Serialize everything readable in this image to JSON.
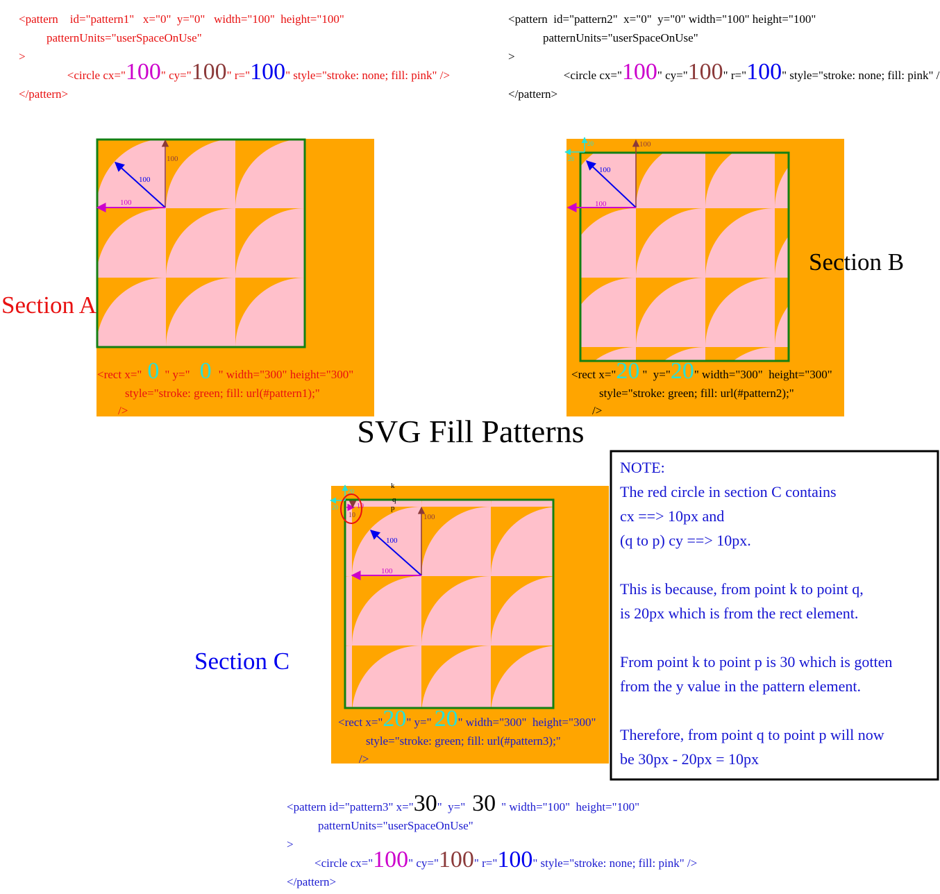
{
  "title": "SVG Fill Patterns",
  "colors": {
    "orange": "#ffa500",
    "pink": "#ffc0cb",
    "green": "#138013",
    "red": "#e81010",
    "blue": "#0000ee",
    "magenta": "#cc00cc",
    "brown": "#8b3a3a",
    "cyan": "#27e0d8",
    "code_blue": "#1a1ad0",
    "note_text": "#1414d2",
    "black": "#000000"
  },
  "code_a": {
    "l1": "<pattern    id=\"pattern1\"   x=\"0\"  y=\"0\"   width=\"100\"  height=\"100\"",
    "l2": "patternUnits=\"userSpaceOnUse\"",
    "l3": ">",
    "l4_pre": "<circle cx=\"",
    "cx": "100",
    "l4_mid1": "\" cy=\"",
    "cy": "100",
    "l4_mid2": "\" r=\"",
    "r": "100",
    "l4_post": "\" style=\"stroke: none; fill: pink\" />",
    "l5": "</pattern>"
  },
  "code_b": {
    "l1": "<pattern  id=\"pattern2\"  x=\"0\"  y=\"0\" width=\"100\" height=\"100\"",
    "l2": "patternUnits=\"userSpaceOnUse\"",
    "l3": ">",
    "l4_pre": "<circle cx=\"",
    "cx": "100",
    "l4_mid1": "\" cy=\"",
    "cy": "100",
    "l4_mid2": "\" r=\"",
    "r": "100",
    "l4_post": "\" style=\"stroke: none; fill: pink\" />",
    "l5": "</pattern>"
  },
  "code_c": {
    "l1_pre": "<pattern id=\"pattern3\" x=\"",
    "x": "30",
    "l1_mid": "\"  y=\"",
    "y": "30",
    "l1_post": "\" width=\"100\"  height=\"100\"",
    "l2": "patternUnits=\"userSpaceOnUse\"",
    "l3": ">",
    "l4_pre": "<circle cx=\"",
    "cx": "100",
    "l4_mid1": "\" cy=\"",
    "cy": "100",
    "l4_mid2": "\" r=\"",
    "r": "100",
    "l4_post": "\" style=\"stroke: none; fill: pink\" />",
    "l5": "</pattern>"
  },
  "section_a": {
    "label": "Section A",
    "arrow_up": "100",
    "arrow_diag": "100",
    "arrow_left": "100",
    "rect_pre": "<rect x=\"",
    "x": "0",
    "rect_mid": "\" y=\"",
    "y": "0",
    "rect_post": "\" width=\"300\" height=\"300\"",
    "rect_l2": "style=\"stroke: green; fill: url(#pattern1);\"",
    "rect_l3": "/>"
  },
  "section_b": {
    "label": "Section B",
    "arrow_up": "100",
    "arrow_diag": "100",
    "arrow_left": "100",
    "offset_x": "20",
    "offset_y": "20",
    "rect_pre": "<rect x=\"",
    "x": "20",
    "rect_mid": "\"  y=\"",
    "y": "20",
    "rect_post": "\" width=\"300\"  height=\"300\"",
    "rect_l2": "style=\"stroke: green; fill: url(#pattern2);\"",
    "rect_l3": "/>"
  },
  "section_c": {
    "label": "Section C",
    "arrow_up": "100",
    "arrow_diag": "100",
    "arrow_left": "100",
    "offset_x": "20",
    "offset_y": "20",
    "small_cx": "10",
    "small_cy": "10",
    "point_k": "k",
    "point_q": "q",
    "point_p": "p",
    "rect_pre": "<rect x=\"",
    "x": "20",
    "rect_mid": "\" y=\"",
    "y": "20",
    "rect_post": "\" width=\"300\"  height=\"300\"",
    "rect_l2": "style=\"stroke: green; fill: url(#pattern3);\"",
    "rect_l3": "/>"
  },
  "note": {
    "lines": [
      "NOTE:",
      "The red circle in section C contains",
      "cx ==> 10px and",
      "(q to p) cy ==> 10px.",
      "",
      "This is because, from point k to point q,",
      "is 20px which is from the rect element.",
      "",
      "From point k to point p is 30 which is gotten",
      "from the y value in the pattern element.",
      "",
      "Therefore, from point q to point p will now",
      "be 30px - 20px = 10px"
    ]
  }
}
